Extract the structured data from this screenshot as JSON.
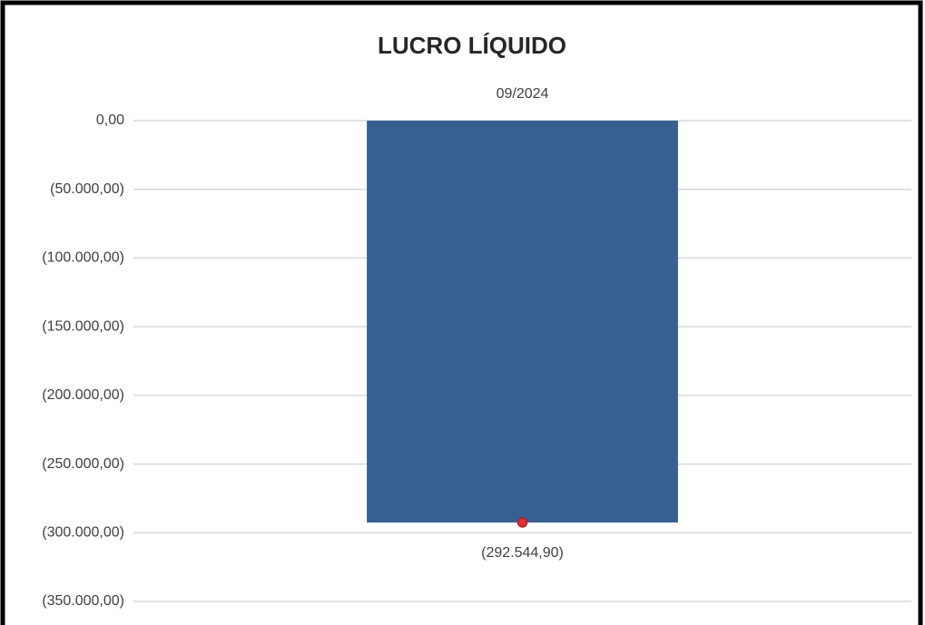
{
  "chart_data": {
    "type": "bar",
    "title": "LUCRO LÍQUIDO",
    "categories": [
      "09/2024"
    ],
    "values": [
      -292544.9
    ],
    "value_labels": [
      "(292.544,90)"
    ],
    "color": "#376092",
    "marker_color": "#e03030",
    "ylim": [
      -350000,
      0
    ],
    "yticks": [
      {
        "value": 0,
        "label": "0,00"
      },
      {
        "value": -50000,
        "label": "(50.000,00)"
      },
      {
        "value": -100000,
        "label": "(100.000,00)"
      },
      {
        "value": -150000,
        "label": "(150.000,00)"
      },
      {
        "value": -200000,
        "label": "(200.000,00)"
      },
      {
        "value": -250000,
        "label": "(250.000,00)"
      },
      {
        "value": -300000,
        "label": "(300.000,00)"
      },
      {
        "value": -350000,
        "label": "(350.000,00)"
      }
    ],
    "grid": true
  }
}
